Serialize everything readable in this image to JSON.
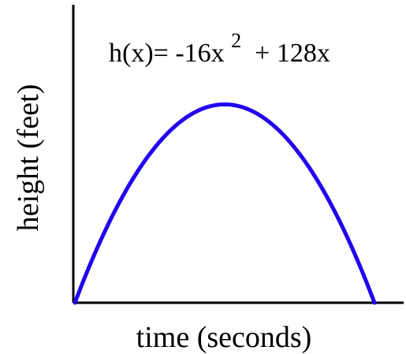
{
  "chart_data": {
    "type": "line",
    "title": "h(x)= -16x",
    "title_exponent": "2",
    "title_rest": " + 128x",
    "xlabel": "time (seconds)",
    "ylabel": "height (feet)",
    "xlim": [
      0,
      8
    ],
    "ylim": [
      0,
      350
    ],
    "grid": false,
    "legend": "none",
    "curve": {
      "a": -16,
      "b": 128,
      "c": 0
    },
    "series": [
      {
        "x": [
          0,
          1,
          2,
          3,
          4,
          5,
          6,
          7,
          8
        ],
        "values": [
          0,
          112,
          192,
          240,
          256,
          240,
          192,
          112,
          0
        ],
        "color": "#2200ee"
      }
    ]
  }
}
